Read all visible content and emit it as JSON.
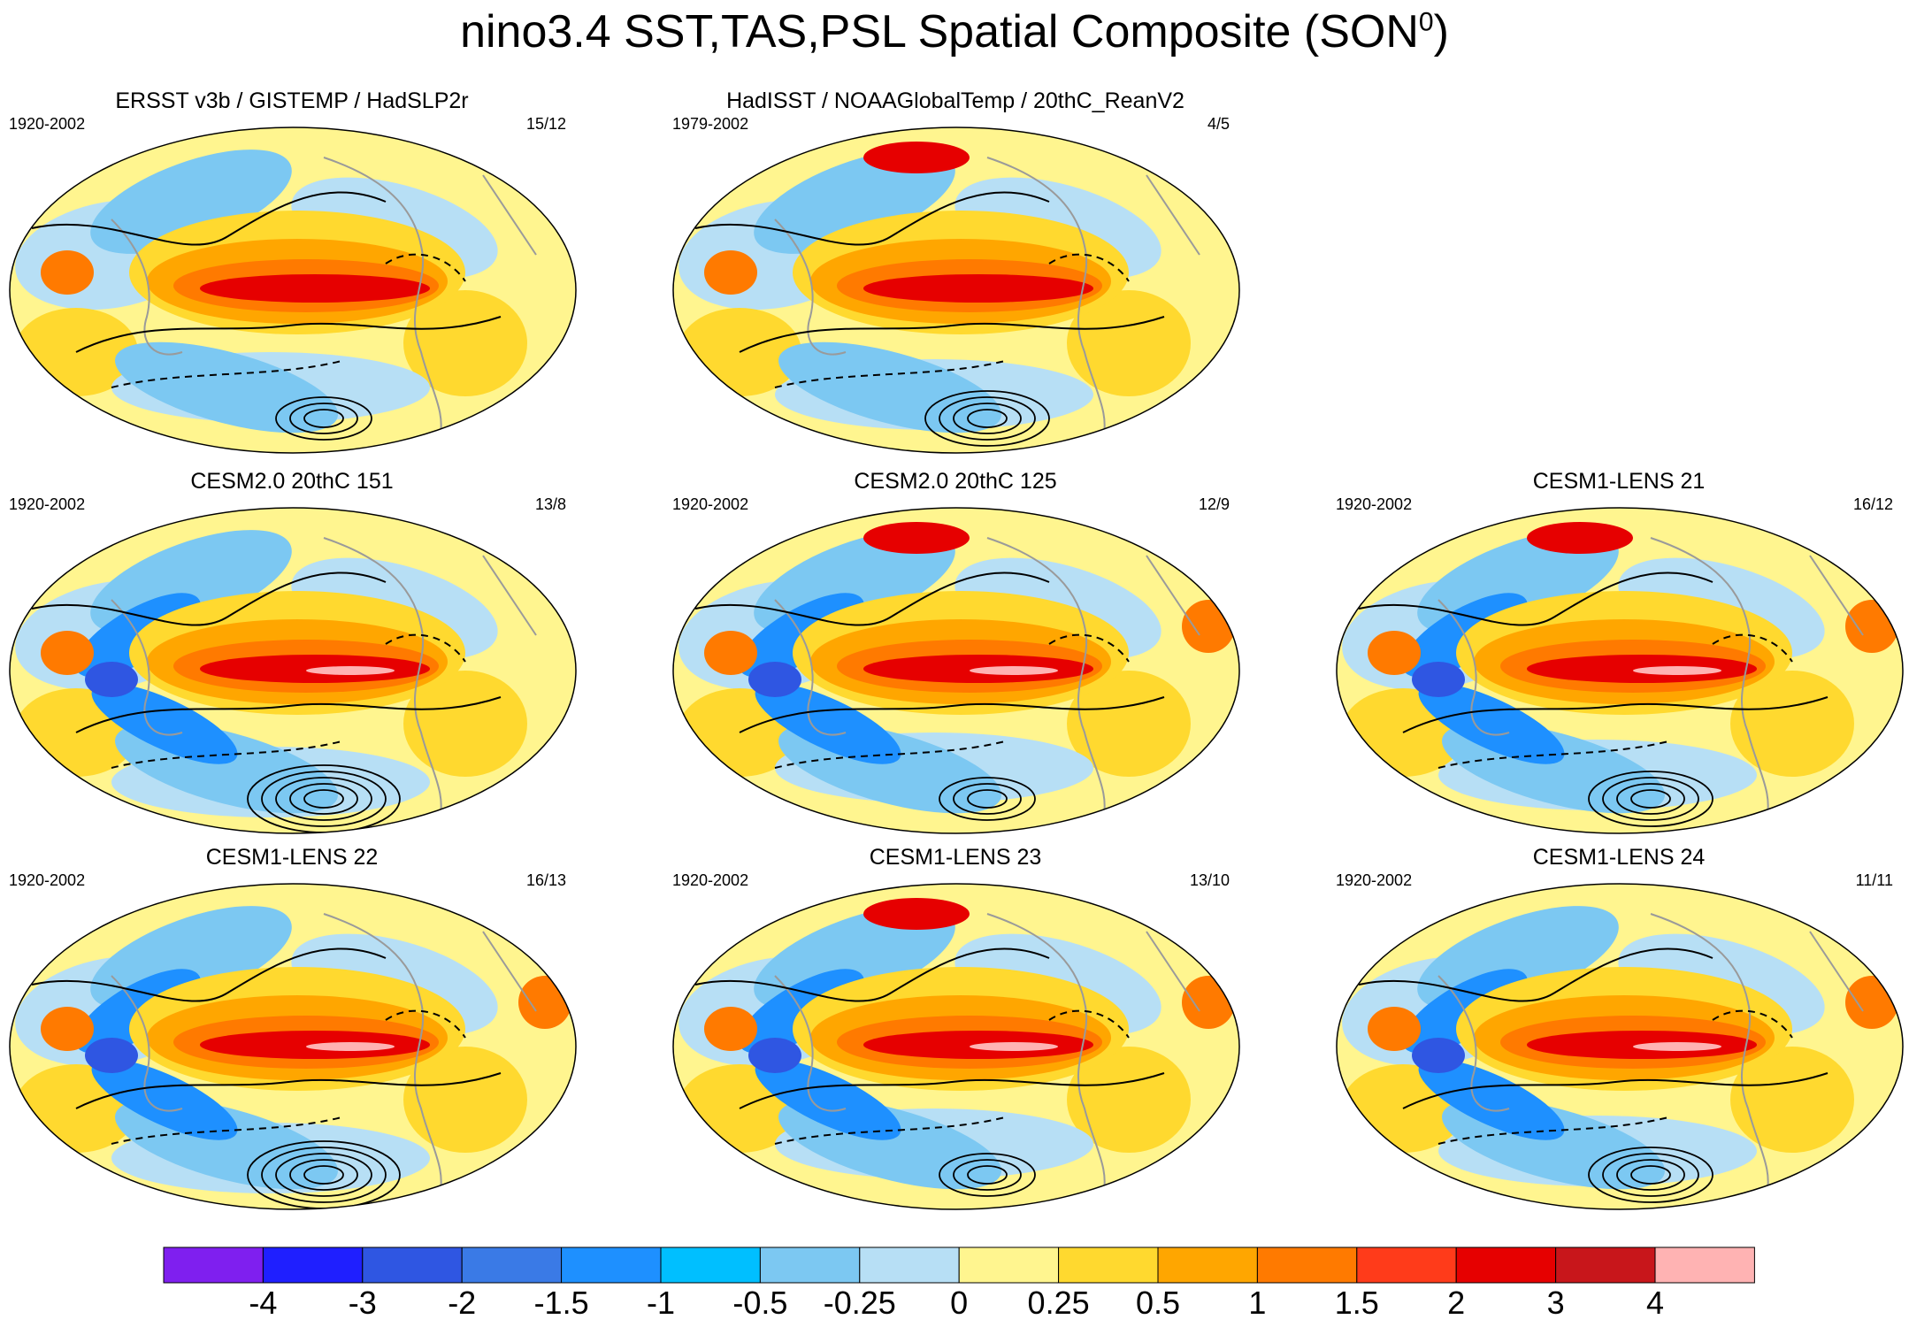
{
  "title": {
    "text": "nino3.4 SST,TAS,PSL Spatial Composite (SON",
    "sup": "0",
    "close": ")"
  },
  "chart_data": {
    "type": "heatmap",
    "description": "Composite maps of SST/TAS (shaded) and PSL (contours) for SON",
    "panels": [
      {
        "id": "p1",
        "title": "ERSST v3b / GISTEMP / HadSLP2r",
        "years": "1920-2002",
        "count": "15/12",
        "variant": 0
      },
      {
        "id": "p2",
        "title": "HadISST / NOAAGlobalTemp / 20thC_ReanV2",
        "years": "1979-2002",
        "count": "4/5",
        "variant": 1
      },
      {
        "id": "p3",
        "title": "CESM2.0 20thC 151",
        "years": "1920-2002",
        "count": "13/8",
        "variant": 2
      },
      {
        "id": "p4",
        "title": "CESM2.0 20thC 125",
        "years": "1920-2002",
        "count": "12/9",
        "variant": 3
      },
      {
        "id": "p5",
        "title": "CESM1-LENS 21",
        "years": "1920-2002",
        "count": "16/12",
        "variant": 4
      },
      {
        "id": "p6",
        "title": "CESM1-LENS 22",
        "years": "1920-2002",
        "count": "16/13",
        "variant": 5
      },
      {
        "id": "p7",
        "title": "CESM1-LENS 23",
        "years": "1920-2002",
        "count": "13/10",
        "variant": 6
      },
      {
        "id": "p8",
        "title": "CESM1-LENS 24",
        "years": "1920-2002",
        "count": "11/11",
        "variant": 7
      }
    ],
    "colorbar": {
      "levels": [
        "-4",
        "-3",
        "-2",
        "-1.5",
        "-1",
        "-0.5",
        "-0.25",
        "0",
        "0.25",
        "0.5",
        "1",
        "1.5",
        "2",
        "3",
        "4"
      ],
      "colors": [
        "#7f1fef",
        "#1f1fff",
        "#2f56e2",
        "#3a7ae6",
        "#1e90ff",
        "#00bfff",
        "#7cc8f2",
        "#b7dff5",
        "#fff58f",
        "#ffd92f",
        "#ffa600",
        "#ff7a00",
        "#ff3b1a",
        "#e60000",
        "#c8161b",
        "#ffb3b3"
      ]
    },
    "field_palette": {
      "strong_pos": "#e60000",
      "pos": "#ff7a00",
      "mod_pos": "#ffa600",
      "weak_pos": "#ffd92f",
      "near_zero": "#fff58f",
      "weak_neg": "#b7dff5",
      "neg": "#7cc8f2",
      "strong_neg": "#1e90ff",
      "very_neg": "#2f56e2",
      "core": "#ffb3b3"
    }
  }
}
